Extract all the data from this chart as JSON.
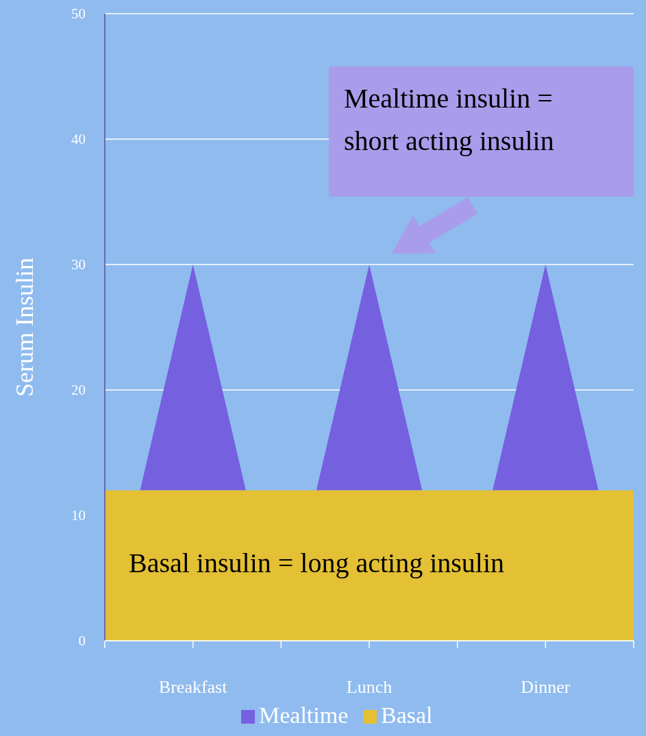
{
  "chart_data": {
    "type": "area",
    "stacked": true,
    "categories": [
      null,
      null,
      null,
      null,
      null,
      "Breakfast",
      null,
      null,
      null,
      null,
      null,
      null,
      null,
      null,
      null,
      "Lunch",
      null,
      null,
      null,
      null,
      null,
      null,
      null,
      null,
      null,
      "Dinner",
      null,
      null,
      null,
      null,
      null
    ],
    "series": [
      {
        "name": "Basal",
        "color": "#e3c034",
        "values": [
          12,
          12,
          12,
          12,
          12,
          12,
          12,
          12,
          12,
          12,
          12,
          12,
          12,
          12,
          12,
          12,
          12,
          12,
          12,
          12,
          12,
          12,
          12,
          12,
          12,
          12,
          12,
          12,
          12,
          12,
          12
        ]
      },
      {
        "name": "Mealtime",
        "color": "#7560e0",
        "values": [
          0,
          0,
          0,
          6,
          12,
          18,
          12,
          6,
          0,
          0,
          0,
          0,
          0,
          6,
          12,
          18,
          12,
          6,
          0,
          0,
          0,
          0,
          0,
          6,
          12,
          18,
          12,
          6,
          0,
          0,
          0
        ]
      }
    ],
    "ylim": [
      0,
      50
    ],
    "yticks": [
      0,
      10,
      20,
      30,
      40,
      50
    ],
    "ylabel": "Serum Insulin",
    "grid": "y",
    "legend": "bottom",
    "annotations": [
      "Mealtime insulin = short acting insulin",
      "Basal insulin = long acting insulin"
    ]
  }
}
